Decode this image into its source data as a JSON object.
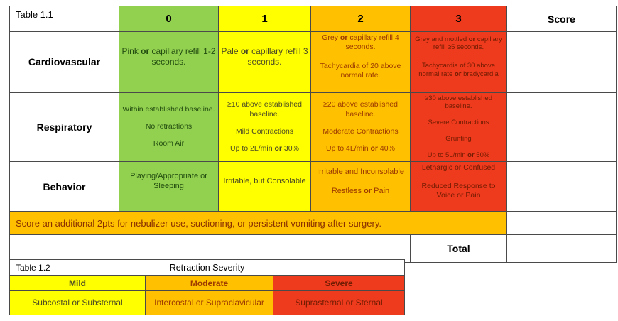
{
  "colors": {
    "green": "#92d050",
    "yellow": "#ffff00",
    "orange": "#ffc000",
    "red": "#ee3a1d",
    "border": "#4a4a4a"
  },
  "text_colors": {
    "green": "#234d10",
    "yellow": "#4c4a24",
    "orange": "#9c3a00",
    "red": "#701c02"
  },
  "table1": {
    "title": "Table 1.1",
    "score_columns": [
      "0",
      "1",
      "2",
      "3"
    ],
    "column_colors": [
      "green",
      "yellow",
      "orange",
      "red"
    ],
    "score_header": "Score",
    "rows": [
      {
        "label": "Cardiovascular",
        "cells": [
          {
            "color": "green",
            "lines": [
              "Pink *or* capillary refill 1-2 seconds."
            ]
          },
          {
            "color": "yellow",
            "lines": [
              "Pale *or* capillary refill 3 seconds."
            ]
          },
          {
            "color": "orange",
            "lines": [
              "Grey *or* capillary refill 4 seconds.",
              "Tachycardia of 20 above normal rate."
            ]
          },
          {
            "color": "red",
            "lines": [
              "Grey and mottled *or* capillary refill ≥5 seconds.",
              "Tachycardia of 30 above normal rate *or* bradycardia"
            ]
          }
        ]
      },
      {
        "label": "Respiratory",
        "cells": [
          {
            "color": "green",
            "lines": [
              "Within established baseline.",
              "No retractions",
              "Room Air"
            ]
          },
          {
            "color": "yellow",
            "lines": [
              "≥10 above established baseline.",
              "Mild Contractions",
              "Up to 2L/min *or* 30%"
            ]
          },
          {
            "color": "orange",
            "lines": [
              "≥20 above established baseline.",
              "Moderate Contractions",
              "Up to 4L/min *or* 40%"
            ]
          },
          {
            "color": "red",
            "lines": [
              "≥30 above established baseline.",
              "Severe Contractions",
              "Grunting",
              "Up to 5L/min *or* 50%"
            ]
          }
        ]
      },
      {
        "label": "Behavior",
        "cells": [
          {
            "color": "green",
            "lines": [
              "Playing/Appropriate or Sleeping"
            ]
          },
          {
            "color": "yellow",
            "lines": [
              "Irritable, but Consolable"
            ]
          },
          {
            "color": "orange",
            "lines": [
              "Irritable and Inconsolable",
              "Restless *or* Pain"
            ]
          },
          {
            "color": "red",
            "lines": [
              "Lethargic or Confused",
              "Reduced Response to Voice or Pain"
            ]
          }
        ]
      }
    ],
    "note": "Score an additional 2pts for nebulizer use, suctioning, or persistent vomiting after surgery.",
    "total_label": "Total"
  },
  "table2": {
    "title": "Table 1.2",
    "header": "Retraction Severity",
    "columns": [
      {
        "label": "Mild",
        "value": "Subcostal or Substernal",
        "color": "yellow"
      },
      {
        "label": "Moderate",
        "value": "Intercostal or Supraclavicular",
        "color": "orange"
      },
      {
        "label": "Severe",
        "value": "Suprasternal or Sternal",
        "color": "red"
      }
    ]
  }
}
